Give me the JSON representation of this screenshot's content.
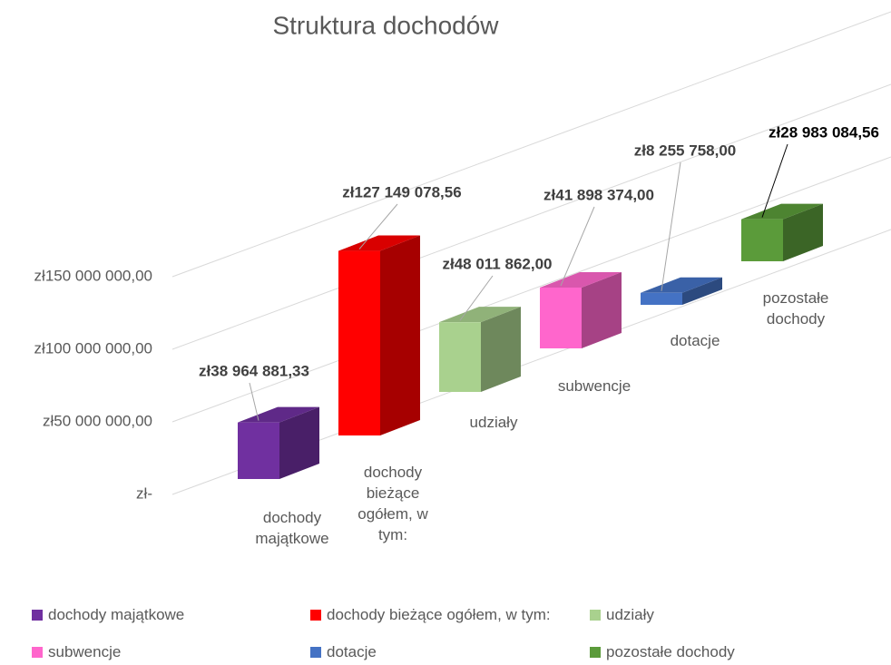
{
  "chart_data": {
    "type": "bar3d",
    "title": "Struktura dochodów",
    "categories": [
      "dochody majątkowe",
      "dochody bieżące ogółem, w tym:",
      "udziały",
      "subwencje",
      "dotacje",
      "pozostałe dochody"
    ],
    "values": [
      38964881.33,
      127149078.56,
      48011862,
      41898374,
      8255758,
      28983084.56
    ],
    "value_labels": [
      "zł38 964 881,33",
      "zł127 149 078,56",
      "zł48 011 862,00",
      "zł41 898 374,00",
      "zł8 255 758,00",
      "zł28 983 084,56"
    ],
    "colors": [
      "#7030a0",
      "#ff0000",
      "#a9d18e",
      "#ff66cc",
      "#4472c4",
      "#5b9b3a"
    ],
    "ylim": [
      0,
      150000000
    ],
    "yticks": [
      {
        "value": 0,
        "label": "zł-"
      },
      {
        "value": 50000000,
        "label": "zł50 000 000,00"
      },
      {
        "value": 100000000,
        "label": "zł100 000 000,00"
      },
      {
        "value": 150000000,
        "label": "zł150 000 000,00"
      }
    ],
    "grid": true,
    "legend": "bottom"
  }
}
